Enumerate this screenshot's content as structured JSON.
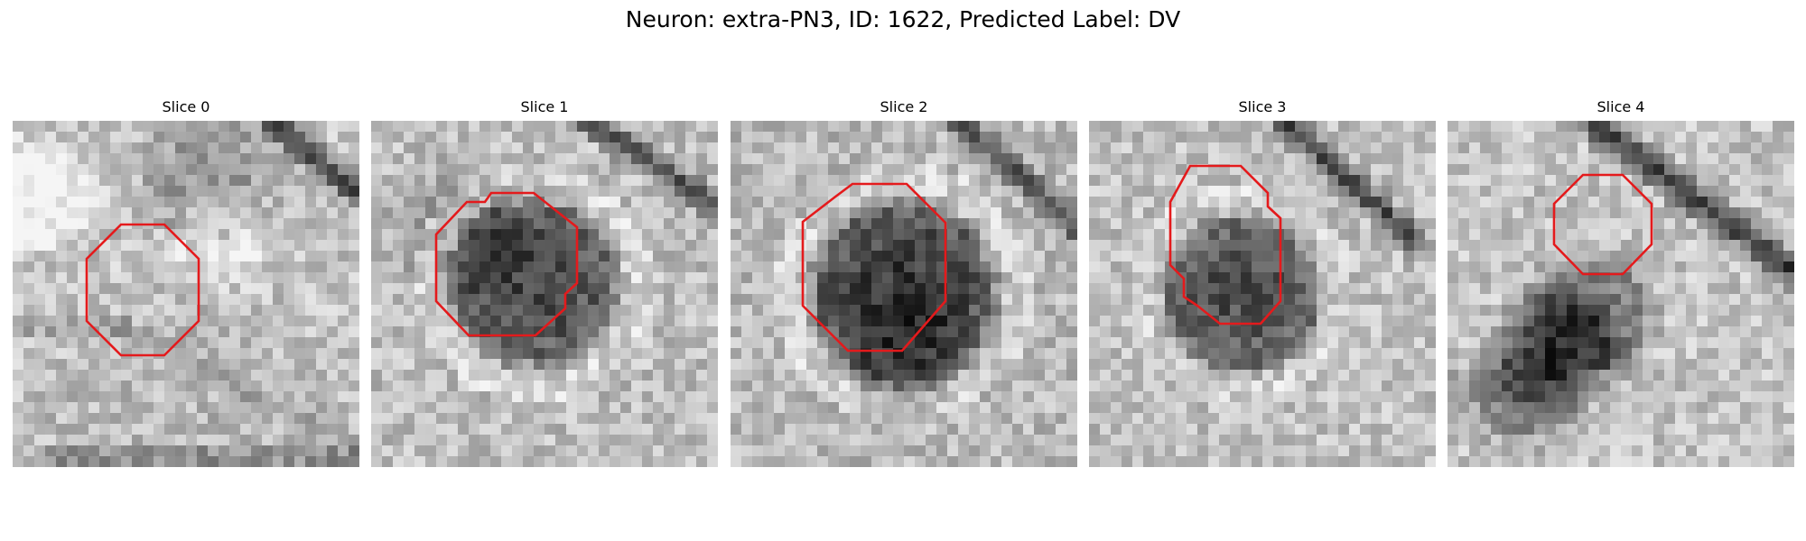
{
  "figure": {
    "title": "Neuron: extra-PN3, ID: 1622, Predicted Label: DV"
  },
  "contour_color": "#e41a1c",
  "colormap": "grayscale",
  "panels": [
    {
      "title": "Slice 0"
    },
    {
      "title": "Slice 1"
    },
    {
      "title": "Slice 2"
    },
    {
      "title": "Slice 3"
    },
    {
      "title": "Slice 4"
    }
  ]
}
